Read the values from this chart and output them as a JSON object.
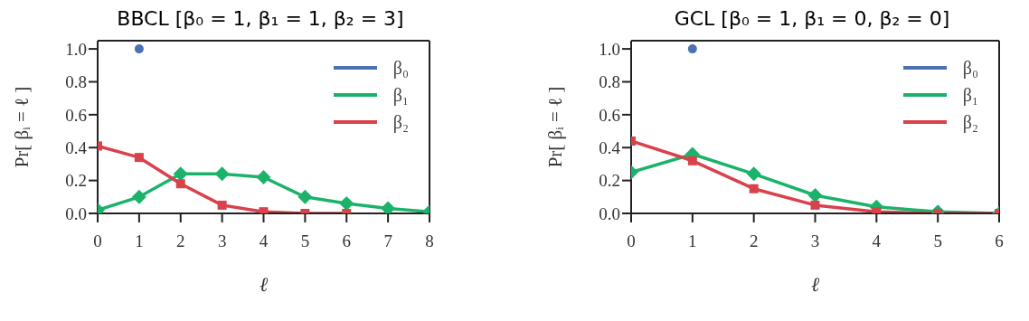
{
  "chart_data": [
    {
      "type": "line",
      "title": "BBCL [β₀ = 1, β₁ = 1, β₂ = 3]",
      "xlabel": "ℓ",
      "ylabel": "Pr[ βᵢ = ℓ ]",
      "xlim": [
        0,
        8
      ],
      "xticks": [
        0,
        1,
        2,
        3,
        4,
        5,
        6,
        7,
        8
      ],
      "ylim": [
        0,
        1.05
      ],
      "yticks": [
        {
          "value": 0,
          "label": "0.0"
        },
        {
          "value": 0.2,
          "label": "0.2"
        },
        {
          "value": 0.4,
          "label": "0.4"
        },
        {
          "value": 0.6,
          "label": "0.6"
        },
        {
          "value": 0.8,
          "label": "0.8"
        },
        {
          "value": 1,
          "label": "1.0"
        }
      ],
      "legend": "top right",
      "line_style": "solid",
      "series": [
        {
          "name": "β₀",
          "color": "#4c72b0",
          "marker": "circle",
          "x": [
            1
          ],
          "values": [
            1
          ]
        },
        {
          "name": "β₁",
          "color": "#1bb36b",
          "marker": "diamond",
          "x": [
            0,
            1,
            2,
            3,
            4,
            5,
            6,
            7,
            8
          ],
          "values": [
            0.02,
            0.1,
            0.24,
            0.24,
            0.22,
            0.1,
            0.06,
            0.03,
            0.01
          ]
        },
        {
          "name": "β₂",
          "color": "#d9414b",
          "marker": "square",
          "x": [
            0,
            1,
            2,
            3,
            4,
            5,
            6
          ],
          "values": [
            0.41,
            0.34,
            0.18,
            0.05,
            0.01,
            0,
            0
          ]
        }
      ]
    },
    {
      "type": "line",
      "title": "GCL [β₀ = 1, β₁ = 0, β₂ = 0]",
      "xlabel": "ℓ",
      "ylabel": "Pr[ βᵢ = ℓ ]",
      "xlim": [
        0,
        6
      ],
      "xticks": [
        0,
        1,
        2,
        3,
        4,
        5,
        6
      ],
      "ylim": [
        0,
        1.05
      ],
      "yticks": [
        {
          "value": 0,
          "label": "0.0"
        },
        {
          "value": 0.2,
          "label": "0.2"
        },
        {
          "value": 0.4,
          "label": "0.4"
        },
        {
          "value": 0.6,
          "label": "0.6"
        },
        {
          "value": 0.8,
          "label": "0.8"
        },
        {
          "value": 1,
          "label": "1.0"
        }
      ],
      "legend": "top right",
      "line_style": "solid",
      "series": [
        {
          "name": "β₀",
          "color": "#4c72b0",
          "marker": "circle",
          "x": [
            1
          ],
          "values": [
            1
          ]
        },
        {
          "name": "β₁",
          "color": "#1bb36b",
          "marker": "diamond",
          "x": [
            0,
            1,
            2,
            3,
            4,
            5,
            6
          ],
          "values": [
            0.25,
            0.36,
            0.24,
            0.11,
            0.04,
            0.01,
            0
          ]
        },
        {
          "name": "β₂",
          "color": "#d9414b",
          "marker": "square",
          "x": [
            0,
            1,
            2,
            3,
            4,
            5,
            6
          ],
          "values": [
            0.44,
            0.32,
            0.15,
            0.05,
            0.01,
            0,
            0
          ]
        }
      ]
    }
  ]
}
